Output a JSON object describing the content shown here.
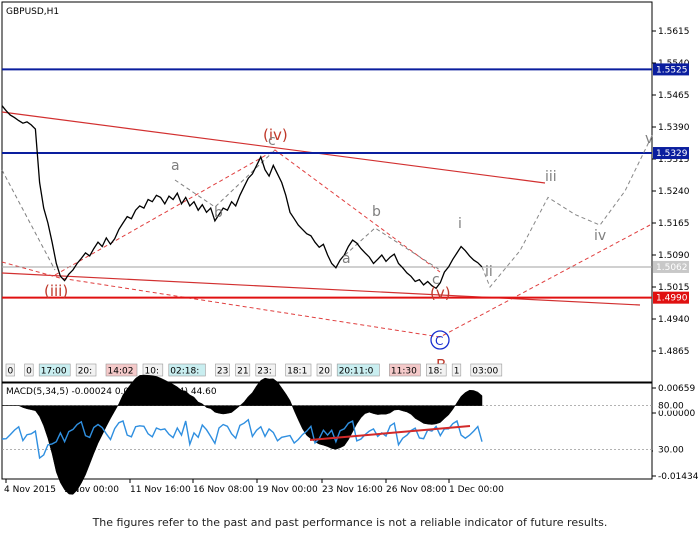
{
  "chart_data": {
    "type": "line",
    "title": "GBPUSD,H1",
    "price_axis": {
      "ylim": [
        1.4805,
        1.563
      ],
      "ticks": [
        1.5615,
        1.554,
        1.5465,
        1.539,
        1.5315,
        1.524,
        1.5165,
        1.509,
        1.5015,
        1.494,
        1.4865
      ],
      "tick_labels": [
        "1.5615",
        "1.5540",
        "1.5465",
        "1.5390",
        "1.5315",
        "1.5240",
        "1.5165",
        "1.5090",
        "1.5015",
        "1.4940",
        "1.4865"
      ]
    },
    "levels": [
      {
        "value": 1.5525,
        "label": "1.5525",
        "color": "#0a1e9e"
      },
      {
        "value": 1.5329,
        "label": "1.5329",
        "color": "#0a1e9e"
      },
      {
        "value": 1.499,
        "label": "1.4990",
        "color": "#e01010"
      },
      {
        "value": 1.5062,
        "label": "1.5062",
        "color": "#a0a0a0"
      }
    ],
    "x_tick_labels": [
      "4 Nov 2015",
      "9 Nov 00:00",
      "11 Nov 16:00",
      "16 Nov 08:00",
      "19 Nov 00:00",
      "23 Nov 16:00",
      "26 Nov 08:00",
      "1 Dec 00:00"
    ],
    "price": [
      1.544,
      1.5428,
      1.5418,
      1.5412,
      1.5405,
      1.5399,
      1.5402,
      1.5395,
      1.5385,
      1.526,
      1.52,
      1.5165,
      1.512,
      1.507,
      1.504,
      1.503,
      1.5045,
      1.5055,
      1.507,
      1.5082,
      1.5095,
      1.5088,
      1.5105,
      1.512,
      1.511,
      1.513,
      1.5115,
      1.5128,
      1.515,
      1.5165,
      1.518,
      1.5175,
      1.5195,
      1.5205,
      1.52,
      1.522,
      1.5215,
      1.523,
      1.5225,
      1.521,
      1.5228,
      1.522,
      1.5235,
      1.521,
      1.5225,
      1.5205,
      1.5215,
      1.5195,
      1.5208,
      1.519,
      1.52,
      1.517,
      1.5185,
      1.52,
      1.5195,
      1.5215,
      1.5205,
      1.523,
      1.525,
      1.527,
      1.528,
      1.53,
      1.532,
      1.529,
      1.5275,
      1.53,
      1.528,
      1.526,
      1.523,
      1.519,
      1.5175,
      1.516,
      1.515,
      1.514,
      1.5135,
      1.512,
      1.5108,
      1.5115,
      1.509,
      1.507,
      1.506,
      1.5078,
      1.509,
      1.511,
      1.5125,
      1.5118,
      1.5105,
      1.5095,
      1.5085,
      1.507,
      1.508,
      1.509,
      1.5075,
      1.5085,
      1.5092,
      1.507,
      1.506,
      1.5048,
      1.504,
      1.5028,
      1.5032,
      1.502,
      1.5028,
      1.5018,
      1.5012,
      1.5025,
      1.505,
      1.5062,
      1.508,
      1.5095,
      1.511,
      1.51,
      1.5088,
      1.5078,
      1.5072,
      1.5062
    ],
    "projection": [
      1.5062,
      1.5015,
      1.51,
      1.5225,
      1.5185,
      1.516,
      1.524,
      1.536
    ],
    "wave_labels_gray": [
      "a",
      "b",
      "c",
      "a",
      "b",
      "c",
      "i",
      "ii",
      "iii",
      "iv",
      "v"
    ],
    "wave_labels_red": [
      "(iv)",
      "(iii)",
      "(v)",
      "B"
    ],
    "circle_label": "C",
    "time_tags": [
      "0",
      "0",
      "17:00",
      "20:",
      "14:02",
      "10:",
      "02:18:",
      "23",
      "21",
      "23:",
      "18:1",
      "20",
      "20:11:0",
      "11:30",
      "18:",
      "1",
      "03:00"
    ],
    "indicator": {
      "legend": "MACD(5,34,5) -0.00024 0.00011 RSI(14) 44.60",
      "tick_labels": [
        "0.00659",
        "0.00000",
        "30.00",
        "-0.01434"
      ],
      "levels_labels": [
        "80.00",
        "30.00"
      ],
      "rsi_range": [
        0,
        100
      ]
    }
  },
  "disclaimer": "The figures refer to the past and past performance is not a reliable indicator of future results."
}
